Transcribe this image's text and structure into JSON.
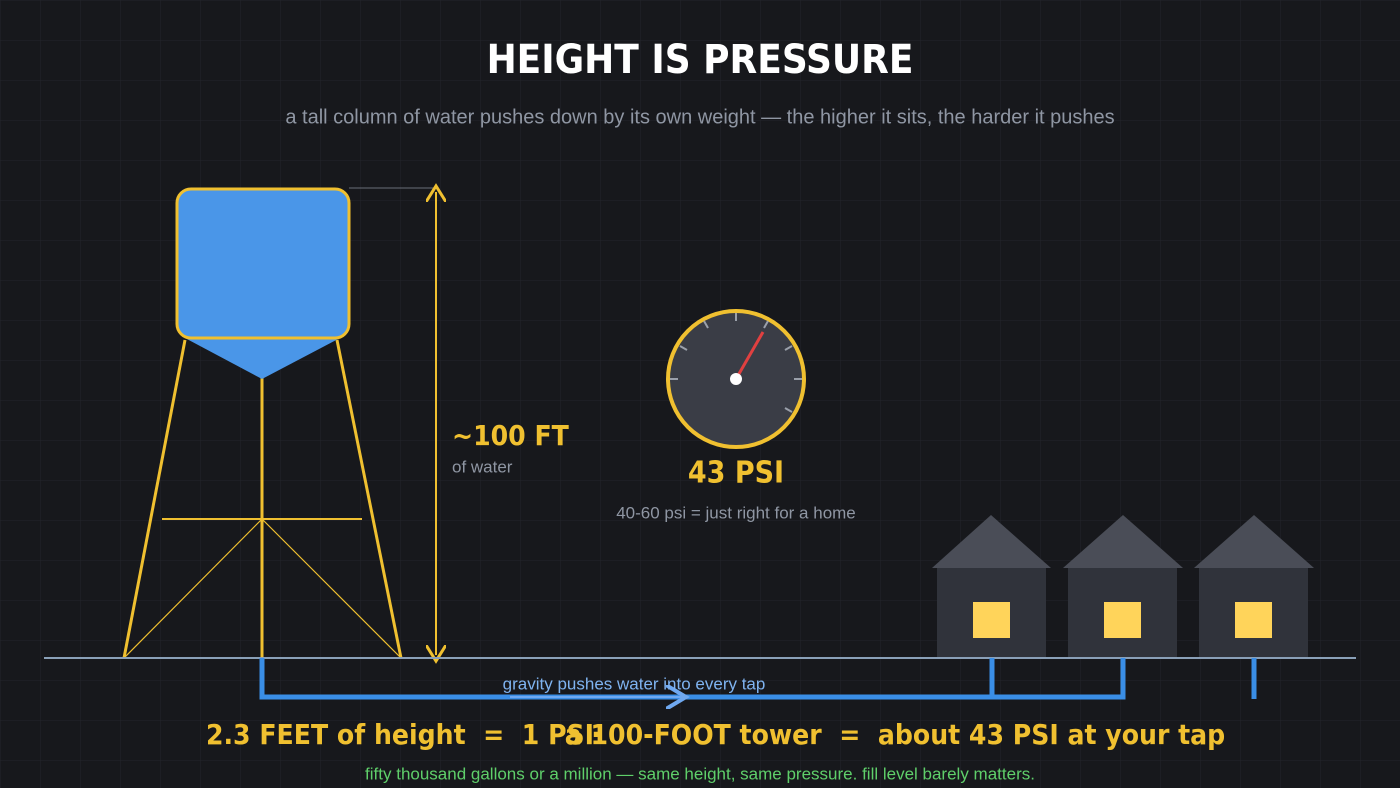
{
  "header": {
    "title": "HEIGHT IS PRESSURE",
    "subtitle": "a tall column of water pushes down by its own weight — the higher it sits, the harder it pushes"
  },
  "tower": {
    "height_label": "~100 FT",
    "height_note": "of water"
  },
  "gauge": {
    "reading": "43 PSI",
    "note": "40-60 psi = just right for a home"
  },
  "pipe": {
    "label": "gravity pushes water into every tap"
  },
  "formula": {
    "left": "2.3 FEET of height  =  1 PSI",
    "separator": "·",
    "right": "a 100-FOOT tower  =  about 43 PSI at your tap"
  },
  "footnote": "fifty thousand gallons or a million — same height, same pressure. fill level barely matters."
}
